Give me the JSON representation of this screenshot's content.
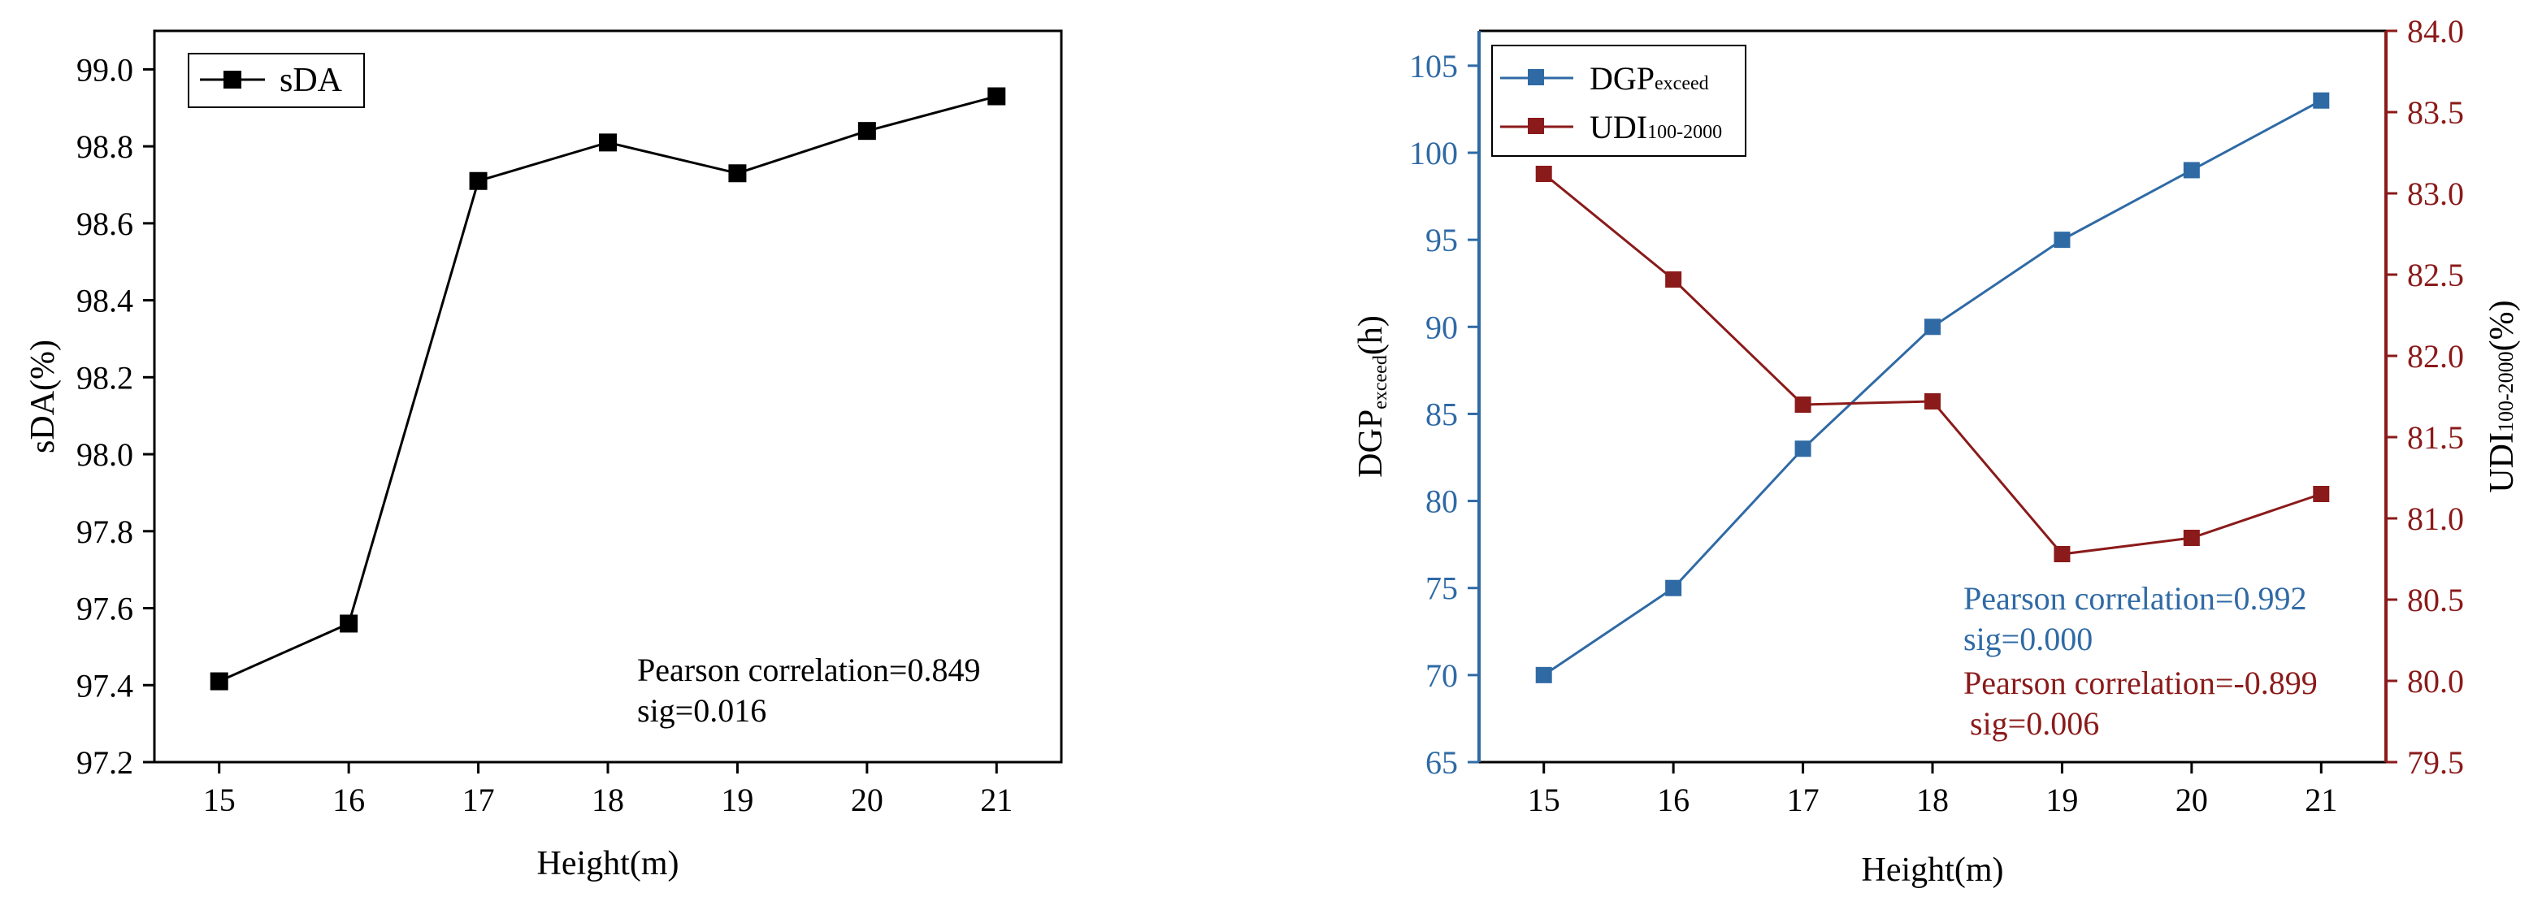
{
  "chart_data": [
    {
      "type": "line",
      "x": [
        15,
        16,
        17,
        18,
        19,
        20,
        21
      ],
      "xlabel": "Height(m)",
      "ylabel": "sDA(%)",
      "xlim": [
        14.5,
        21.5
      ],
      "ylim": [
        97.2,
        99.1
      ],
      "xticks": [
        "15",
        "16",
        "17",
        "18",
        "19",
        "20",
        "21"
      ],
      "yticks": [
        "97.2",
        "97.4",
        "97.6",
        "97.8",
        "98.0",
        "98.2",
        "98.4",
        "98.6",
        "98.8",
        "99.0"
      ],
      "series": [
        {
          "name": "sDA",
          "values": [
            97.41,
            97.56,
            98.71,
            98.81,
            98.73,
            98.84,
            98.93
          ],
          "color": "#000000",
          "marker": "square"
        }
      ],
      "legend": "top-left",
      "annotation": {
        "line1": "Pearson correlation=0.849",
        "line2": "sig=0.016",
        "color": "#000000"
      }
    },
    {
      "type": "line",
      "x": [
        15,
        16,
        17,
        18,
        19,
        20,
        21
      ],
      "xlabel": "Height(m)",
      "xlim": [
        14.5,
        21.5
      ],
      "xticks": [
        "15",
        "16",
        "17",
        "18",
        "19",
        "20",
        "21"
      ],
      "left_axis": {
        "label_main": "DGP",
        "label_sub": "exceed",
        "label_suffix": "(h)",
        "ylim": [
          65,
          107
        ],
        "yticks": [
          "65",
          "70",
          "75",
          "80",
          "85",
          "90",
          "95",
          "100",
          "105"
        ],
        "color": "#2f6aa5"
      },
      "right_axis": {
        "label_main": "UDI",
        "label_sub": "100-2000",
        "label_suffix": "(%)",
        "ylim": [
          79.5,
          84.0
        ],
        "yticks": [
          "79.5",
          "80.0",
          "80.5",
          "81.0",
          "81.5",
          "82.0",
          "82.5",
          "83.0",
          "83.5",
          "84.0"
        ],
        "color": "#8b1a1a"
      },
      "series": [
        {
          "name_main": "DGP",
          "name_sub": "exceed",
          "axis": "left",
          "values": [
            70,
            75,
            83,
            90,
            95,
            99,
            103
          ],
          "color": "#2f6aa5",
          "marker": "square"
        },
        {
          "name_main": "UDI",
          "name_sub": "100-2000",
          "axis": "right",
          "values": [
            83.12,
            82.47,
            81.7,
            81.72,
            80.78,
            80.88,
            81.15
          ],
          "color": "#8b1a1a",
          "marker": "square"
        }
      ],
      "legend": "top-left",
      "annotations": [
        {
          "line1": "Pearson correlation=0.992",
          "line2": "sig=0.000",
          "color": "#2f6aa5"
        },
        {
          "line1": "Pearson correlation=-0.899",
          "line2": "sig=0.006",
          "color": "#8b1a1a"
        }
      ]
    }
  ]
}
